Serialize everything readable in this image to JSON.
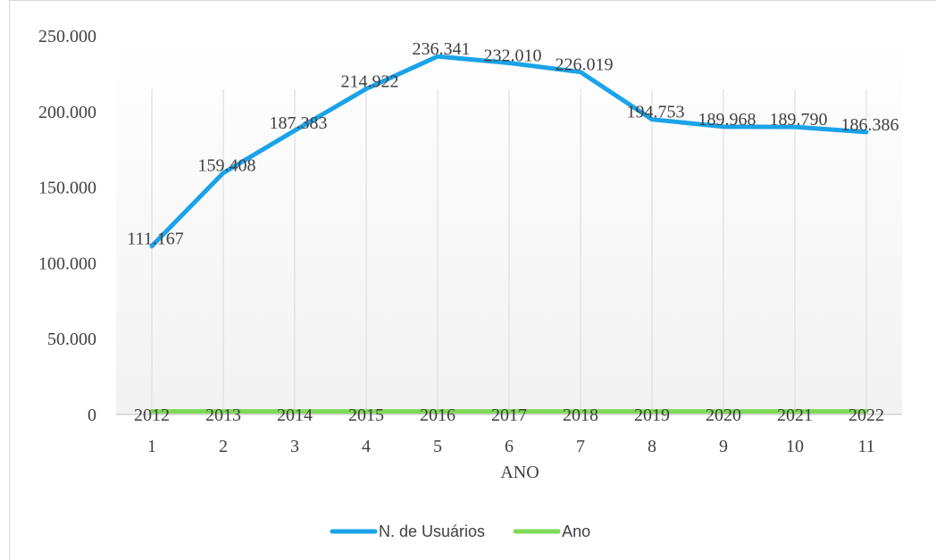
{
  "chart_data": {
    "type": "line",
    "title": "",
    "xlabel": "ANO",
    "ylabel": "",
    "ylim": [
      0,
      250000
    ],
    "y_ticks": [
      "0",
      "50.000",
      "100.000",
      "150.000",
      "200.000",
      "250.000"
    ],
    "categories": [
      "1",
      "2",
      "3",
      "4",
      "5",
      "6",
      "7",
      "8",
      "9",
      "10",
      "11"
    ],
    "series": [
      {
        "name": "N. de Usuários",
        "color": "#1aa3e8",
        "values": [
          111167,
          159408,
          187383,
          214922,
          236341,
          232010,
          226019,
          194753,
          189968,
          189790,
          186386
        ],
        "labels": [
          "111.167",
          "159.408",
          "187.383",
          "214.922",
          "236.341",
          "232.010",
          "226.019",
          "194.753",
          "189.968",
          "189.790",
          "186.386"
        ]
      },
      {
        "name": "Ano",
        "color": "#7ed957",
        "values": [
          2012,
          2013,
          2014,
          2015,
          2016,
          2017,
          2018,
          2019,
          2020,
          2021,
          2022
        ],
        "labels": [
          "2012",
          "2013",
          "2014",
          "2015",
          "2016",
          "2017",
          "2018",
          "2019",
          "2020",
          "2021",
          "2022"
        ]
      }
    ],
    "grid": "vertical",
    "legend": "bottom"
  }
}
